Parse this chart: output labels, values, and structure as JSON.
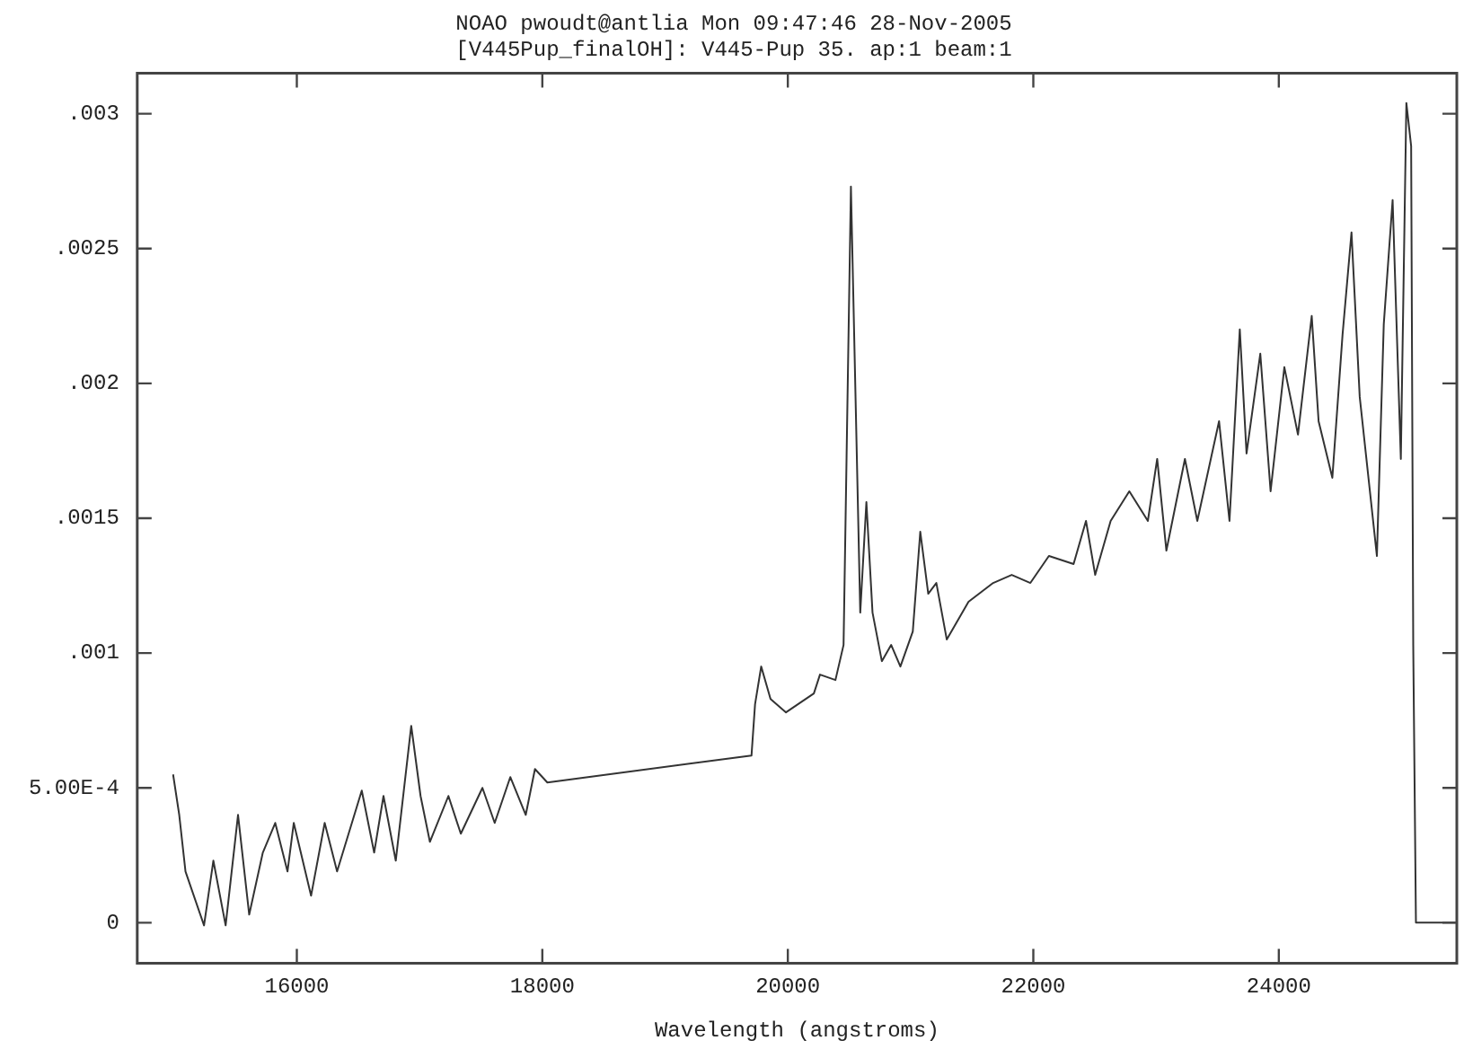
{
  "chart_data": {
    "type": "line",
    "title": "NOAO pwoudt@antlia Mon 09:47:46 28-Nov-2005",
    "subtitle": "[V445Pup_finalOH]: V445-Pup 35. ap:1 beam:1",
    "xlabel": "Wavelength (angstroms)",
    "xlim": [
      14700,
      25450
    ],
    "xticks": [
      16000,
      18000,
      20000,
      22000,
      24000
    ],
    "ylim": [
      -0.00015,
      0.00315
    ],
    "yticks": [
      {
        "value": 0,
        "label": "0"
      },
      {
        "value": 0.0005,
        "label": "5.00E-4"
      },
      {
        "value": 0.001,
        "label": ".001"
      },
      {
        "value": 0.0015,
        "label": ".0015"
      },
      {
        "value": 0.002,
        "label": ".002"
      },
      {
        "value": 0.0025,
        "label": ".0025"
      },
      {
        "value": 0.003,
        "label": ".003"
      }
    ],
    "grid": false,
    "legend": false,
    "marker": "none",
    "line_style": "solid",
    "series": [
      {
        "color": "#333333",
        "x": [
          14992,
          15042,
          15093,
          15244,
          15320,
          15420,
          15521,
          15612,
          15723,
          15824,
          15924,
          15975,
          16116,
          16227,
          16328,
          16529,
          16630,
          16706,
          16806,
          16932,
          17008,
          17084,
          17235,
          17336,
          17512,
          17612,
          17739,
          17865,
          17940,
          18041,
          19704,
          19733,
          19783,
          19859,
          19985,
          20212,
          20262,
          20388,
          20454,
          20514,
          20554,
          20590,
          20640,
          20690,
          20766,
          20842,
          20917,
          21018,
          21079,
          21144,
          21210,
          21295,
          21472,
          21673,
          21824,
          21976,
          22127,
          22328,
          22429,
          22504,
          22630,
          22782,
          22933,
          23009,
          23084,
          23235,
          23336,
          23513,
          23598,
          23682,
          23737,
          23849,
          23933,
          24045,
          24156,
          24268,
          24324,
          24436,
          24519,
          24592,
          24659,
          24799,
          24855,
          24927,
          24994,
          25039,
          25078,
          25095,
          25117,
          25441
        ],
        "values": [
          0.00055,
          0.0004,
          0.00019,
          -1e-05,
          0.00023,
          -1e-05,
          0.0004,
          3e-05,
          0.00026,
          0.00037,
          0.00019,
          0.00037,
          0.0001,
          0.00037,
          0.00019,
          0.00049,
          0.00026,
          0.00047,
          0.00023,
          0.00073,
          0.00047,
          0.0003,
          0.00047,
          0.00033,
          0.0005,
          0.00037,
          0.00054,
          0.0004,
          0.00057,
          0.00052,
          0.00062,
          0.00081,
          0.00095,
          0.00083,
          0.00078,
          0.00085,
          0.00092,
          0.0009,
          0.00103,
          0.00273,
          0.0019,
          0.00115,
          0.00156,
          0.00115,
          0.00097,
          0.00103,
          0.00095,
          0.00108,
          0.00145,
          0.00122,
          0.00126,
          0.00105,
          0.00119,
          0.00126,
          0.00129,
          0.00126,
          0.00136,
          0.00133,
          0.00149,
          0.00129,
          0.00149,
          0.0016,
          0.00149,
          0.00172,
          0.00138,
          0.00172,
          0.00149,
          0.00186,
          0.00149,
          0.0022,
          0.00174,
          0.00211,
          0.0016,
          0.00206,
          0.00181,
          0.00225,
          0.00186,
          0.00165,
          0.00218,
          0.00256,
          0.00195,
          0.00136,
          0.00222,
          0.00268,
          0.00172,
          0.00304,
          0.00288,
          0.00103,
          0,
          0
        ]
      }
    ]
  }
}
